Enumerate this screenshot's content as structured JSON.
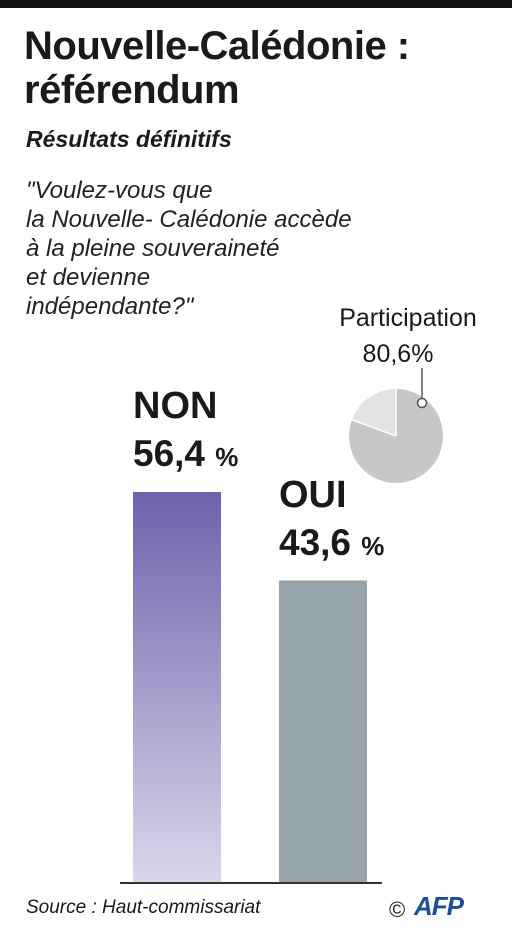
{
  "title": "Nouvelle-Calédonie : référendum",
  "subtitle": "Résultats définitifs",
  "question_lines": [
    "\"Voulez-vous que",
    "la Nouvelle- Calédonie accède",
    "à la pleine souveraineté",
    "et devienne",
    "indépendante?\""
  ],
  "participation": {
    "label": "Participation",
    "value": "80,6%",
    "fraction": 0.806
  },
  "source": "Source : Haut-commissariat",
  "copyright": "©",
  "logo_text": "AFP",
  "colors": {
    "non_top": "#6d63ac",
    "non_bottom": "#d9d6ea",
    "oui": "#96a3a8",
    "pie_main": "#c7c7c7",
    "pie_rest": "#e3e3e3"
  },
  "chart_data": {
    "type": "bar",
    "categories": [
      "NON",
      "OUI"
    ],
    "values": [
      56.4,
      43.6
    ],
    "value_labels": [
      "56,4",
      "43,6"
    ],
    "unit": "%",
    "ylim": [
      0,
      56.4
    ]
  }
}
